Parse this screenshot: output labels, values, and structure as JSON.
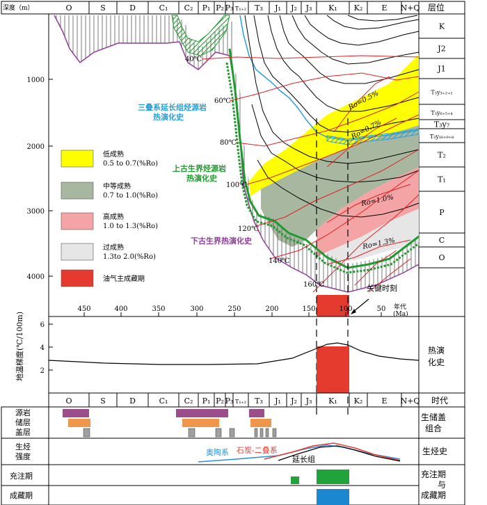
{
  "header": {
    "depth_label": "深度（m）",
    "layers_label": "层位",
    "periods": [
      "O",
      "S",
      "D",
      "C₁",
      "C₂",
      "P₁",
      "P₂",
      "P₃",
      "T₁₊₂",
      "T₃",
      "J₁",
      "J₂",
      "J₃",
      "K₁",
      "K₂",
      "E",
      "N+Q"
    ]
  },
  "depth_ticks": [
    "1000",
    "2000",
    "3000",
    "4000"
  ],
  "age_ticks": [
    "450",
    "400",
    "350",
    "300",
    "250",
    "200",
    "150",
    "100",
    "50"
  ],
  "age_axis_label": [
    "年代",
    "(Ma)"
  ],
  "right_layers": [
    "K",
    "J2",
    "J1",
    "T₃y₃₊₂₊₁",
    "T₃y₆₊₅₊₄",
    "T₃y₇",
    "T₃y₁₀₊₉₊₈",
    "T₂",
    "T₁",
    "P",
    "C",
    "O"
  ],
  "temperatures": [
    "40℃",
    "60℃",
    "80℃",
    "100℃",
    "120℃",
    "140℃",
    "160℃"
  ],
  "ro_labels": [
    "Ro=0.5%",
    "Ro=0.7%",
    "Ro=1.0%",
    "Ro=1.3%"
  ],
  "curve_labels": {
    "triassic": [
      "三叠系延长组烃源岩",
      "热演化史"
    ],
    "upper_paleozoic": [
      "上古生界烃源岩",
      "热演化史"
    ],
    "lower_paleozoic": "下古生界热演化史"
  },
  "legend": [
    {
      "label": "低成熟",
      "range": "0.5 to 0.7(%Ro)",
      "color": "#ffff00"
    },
    {
      "label": "中等成熟",
      "range": "0.7 to 1.0(%Ro)",
      "color": "#a8b8a0"
    },
    {
      "label": "高成熟",
      "range": "1.0 to 1.3(%Ro)",
      "color": "#f4a4a4"
    },
    {
      "label": "过成熟",
      "range": "1.3to 2.0(%Ro)",
      "color": "#e6e6e6"
    },
    {
      "label": "油气主成藏期",
      "range": "",
      "color": "#e53a2e"
    }
  ],
  "key_moment_label": "关键时刻",
  "gradient_panel": {
    "ylabel": "地温梯度(℃/100m)",
    "yticks": [
      "6",
      "4",
      "2"
    ],
    "right_label": [
      "热演",
      "化史"
    ]
  },
  "bottom_header": {
    "periods": [
      "O",
      "S",
      "D",
      "C₁",
      "C₂",
      "P₁",
      "P₂",
      "P₃",
      "T₁₊₂",
      "T₃",
      "J₁",
      "J₂",
      "J₃",
      "K₁",
      "K₂",
      "E",
      "N+Q"
    ],
    "right_label": "时代"
  },
  "row_labels": {
    "source": "源岩",
    "reservoir": "储层",
    "seal": "盖层",
    "generation": [
      "生烃",
      "强度"
    ],
    "charging": "充注期",
    "accumulation": "成藏期"
  },
  "right_row_labels": {
    "assemblage": [
      "生储盖",
      "组合"
    ],
    "generation": "生烃史",
    "charging_accum": [
      "充注期",
      "与",
      "成藏期"
    ]
  },
  "generation_series": [
    {
      "name": "奥陶系",
      "color": "#2a8fd6"
    },
    {
      "name": "石炭-二叠系",
      "color": "#e53a2e"
    },
    {
      "name": "延长组",
      "color": "#000000"
    }
  ],
  "colors": {
    "source": "#9c4d8c",
    "reservoir": "#f0964a",
    "seal": "#a0a0a0",
    "charging": "#1fa33a",
    "accumulation": "#1b87d1",
    "main_accum": "#e53a2e",
    "triassic_curve": "#2a9fd6",
    "upper_paleozoic_curve": "#1e9a2e",
    "lower_paleozoic_curve": "#8e3d9a",
    "temperature": "#e02020"
  }
}
